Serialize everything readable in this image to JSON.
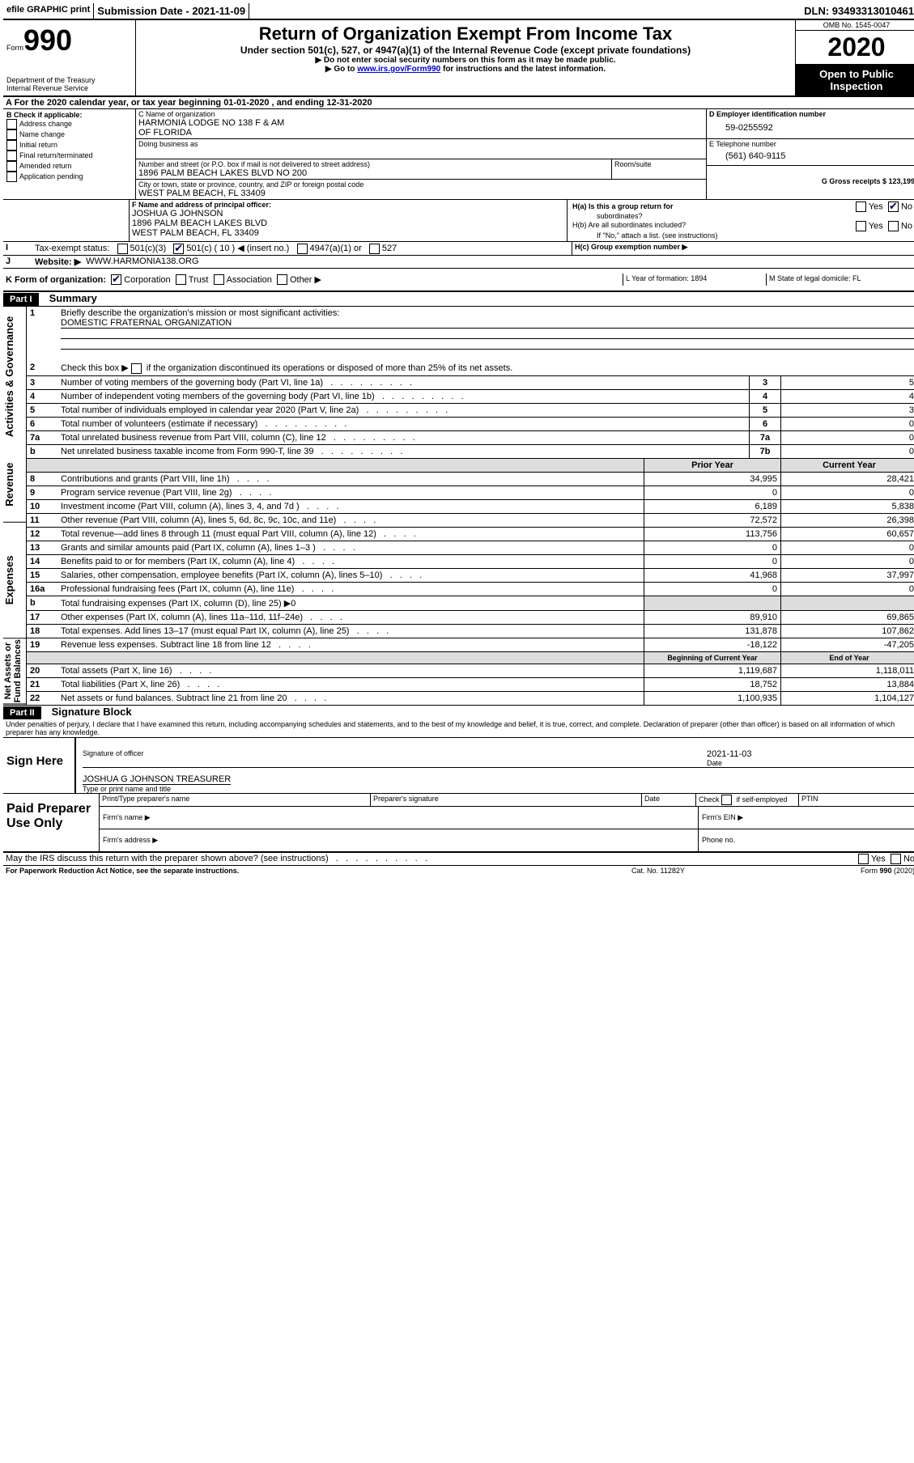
{
  "topbar": {
    "efile_label": "efile GRAPHIC print",
    "submission_label": "Submission Date - 2021-11-09",
    "dln_label": "DLN: 93493313010461"
  },
  "header": {
    "form_word": "Form",
    "form_number": "990",
    "dept1": "Department of the Treasury",
    "dept2": "Internal Revenue Service",
    "title": "Return of Organization Exempt From Income Tax",
    "subtitle": "Under section 501(c), 527, or 4947(a)(1) of the Internal Revenue Code (except private foundations)",
    "note1": "▶ Do not enter social security numbers on this form as it may be made public.",
    "note2_pre": "▶ Go to ",
    "note2_link": "www.irs.gov/Form990",
    "note2_post": " for instructions and the latest information.",
    "omb": "OMB No. 1545-0047",
    "year": "2020",
    "open1": "Open to Public",
    "open2": "Inspection"
  },
  "sectionA": {
    "line_a": "A For the 2020 calendar year, or tax year beginning 01-01-2020   , and ending 12-31-2020",
    "b_label": "B Check if applicable:",
    "b_opts": [
      "Address change",
      "Name change",
      "Initial return",
      "Final return/terminated",
      "Amended return",
      "Application pending"
    ],
    "c_name_label": "C Name of organization",
    "c_name1": "HARMONIA LODGE NO 138 F & AM",
    "c_name2": "OF FLORIDA",
    "dba_label": "Doing business as",
    "addr_label": "Number and street (or P.O. box if mail is not delivered to street address)",
    "room_label": "Room/suite",
    "addr": "1896 PALM BEACH LAKES BLVD NO 200",
    "city_label": "City or town, state or province, country, and ZIP or foreign postal code",
    "city": "WEST PALM BEACH, FL  33409",
    "d_label": "D Employer identification number",
    "d_val": "59-0255592",
    "e_label": "E Telephone number",
    "e_val": "(561) 640-9115",
    "g_label": "G Gross receipts $ 123,199",
    "f_label": "F  Name and address of principal officer:",
    "f_name": "JOSHUA G JOHNSON",
    "f_addr1": "1896 PALM BEACH LAKES BLVD",
    "f_addr2": "WEST PALM BEACH, FL  33409",
    "ha_label": "H(a)  Is this a group return for",
    "ha_label2": "subordinates?",
    "hb_label": "H(b)  Are all subordinates included?",
    "h_note": "If \"No,\" attach a list. (see instructions)",
    "hc_label": "H(c)  Group exemption number ▶",
    "yes": "Yes",
    "no": "No",
    "i_label": "Tax-exempt status:",
    "i_501c3": "501(c)(3)",
    "i_501c": "501(c) ( 10 ) ◀ (insert no.)",
    "i_4947": "4947(a)(1) or",
    "i_527": "527",
    "j_label": "Website: ▶",
    "j_val": "WWW.HARMONIA138.ORG",
    "k_label": "K Form of organization:",
    "k_opts": [
      "Corporation",
      "Trust",
      "Association",
      "Other ▶"
    ],
    "l_label": "L Year of formation: 1894",
    "m_label": "M State of legal domicile: FL"
  },
  "part1": {
    "header": "Part I",
    "title": "Summary",
    "side_gov": "Activities & Governance",
    "side_rev": "Revenue",
    "side_exp": "Expenses",
    "side_net": "Net Assets or Fund Balances",
    "q1": "Briefly describe the organization's mission or most significant activities:",
    "q1_val": "DOMESTIC FRATERNAL ORGANIZATION",
    "q2": "Check this box ▶       if the organization discontinued its operations or disposed of more than 25% of its net assets.",
    "rows_gov": [
      {
        "n": "3",
        "t": "Number of voting members of the governing body (Part VI, line 1a)",
        "l": "3",
        "v": "5"
      },
      {
        "n": "4",
        "t": "Number of independent voting members of the governing body (Part VI, line 1b)",
        "l": "4",
        "v": "4"
      },
      {
        "n": "5",
        "t": "Total number of individuals employed in calendar year 2020 (Part V, line 2a)",
        "l": "5",
        "v": "3"
      },
      {
        "n": "6",
        "t": "Total number of volunteers (estimate if necessary)",
        "l": "6",
        "v": "0"
      },
      {
        "n": "7a",
        "t": "Total unrelated business revenue from Part VIII, column (C), line 12",
        "l": "7a",
        "v": "0"
      },
      {
        "n": "b",
        "t": "Net unrelated business taxable income from Form 990-T, line 39",
        "l": "7b",
        "v": "0"
      }
    ],
    "col_prior": "Prior Year",
    "col_current": "Current Year",
    "col_beg": "Beginning of Current Year",
    "col_end": "End of Year",
    "rows_rev": [
      {
        "n": "8",
        "t": "Contributions and grants (Part VIII, line 1h)",
        "p": "34,995",
        "c": "28,421"
      },
      {
        "n": "9",
        "t": "Program service revenue (Part VIII, line 2g)",
        "p": "0",
        "c": "0"
      },
      {
        "n": "10",
        "t": "Investment income (Part VIII, column (A), lines 3, 4, and 7d )",
        "p": "6,189",
        "c": "5,838"
      },
      {
        "n": "11",
        "t": "Other revenue (Part VIII, column (A), lines 5, 6d, 8c, 9c, 10c, and 11e)",
        "p": "72,572",
        "c": "26,398"
      },
      {
        "n": "12",
        "t": "Total revenue—add lines 8 through 11 (must equal Part VIII, column (A), line 12)",
        "p": "113,756",
        "c": "60,657"
      }
    ],
    "rows_exp": [
      {
        "n": "13",
        "t": "Grants and similar amounts paid (Part IX, column (A), lines 1–3 )",
        "p": "0",
        "c": "0"
      },
      {
        "n": "14",
        "t": "Benefits paid to or for members (Part IX, column (A), line 4)",
        "p": "0",
        "c": "0"
      },
      {
        "n": "15",
        "t": "Salaries, other compensation, employee benefits (Part IX, column (A), lines 5–10)",
        "p": "41,968",
        "c": "37,997"
      },
      {
        "n": "16a",
        "t": "Professional fundraising fees (Part IX, column (A), line 11e)",
        "p": "0",
        "c": "0"
      },
      {
        "n": "b",
        "t": "Total fundraising expenses (Part IX, column (D), line 25) ▶0",
        "p": "",
        "c": ""
      },
      {
        "n": "17",
        "t": "Other expenses (Part IX, column (A), lines 11a–11d, 11f–24e)",
        "p": "89,910",
        "c": "69,865"
      },
      {
        "n": "18",
        "t": "Total expenses. Add lines 13–17 (must equal Part IX, column (A), line 25)",
        "p": "131,878",
        "c": "107,862"
      },
      {
        "n": "19",
        "t": "Revenue less expenses. Subtract line 18 from line 12",
        "p": "-18,122",
        "c": "-47,205"
      }
    ],
    "rows_net": [
      {
        "n": "20",
        "t": "Total assets (Part X, line 16)",
        "p": "1,119,687",
        "c": "1,118,011"
      },
      {
        "n": "21",
        "t": "Total liabilities (Part X, line 26)",
        "p": "18,752",
        "c": "13,884"
      },
      {
        "n": "22",
        "t": "Net assets or fund balances. Subtract line 21 from line 20",
        "p": "1,100,935",
        "c": "1,104,127"
      }
    ]
  },
  "part2": {
    "header": "Part II",
    "title": "Signature Block",
    "decl": "Under penalties of perjury, I declare that I have examined this return, including accompanying schedules and statements, and to the best of my knowledge and belief, it is true, correct, and complete. Declaration of preparer (other than officer) is based on all information of which preparer has any knowledge.",
    "sign_here": "Sign Here",
    "sig_officer": "Signature of officer",
    "date_label": "Date",
    "date_val": "2021-11-03",
    "name_title": "JOSHUA G JOHNSON  TREASURER",
    "type_name": "Type or print name and title",
    "paid": "Paid Preparer Use Only",
    "prep_name": "Print/Type preparer's name",
    "prep_sig": "Preparer's signature",
    "check_self": "Check        if self-employed",
    "ptin": "PTIN",
    "firm_name": "Firm's name   ▶",
    "firm_ein": "Firm's EIN ▶",
    "firm_addr": "Firm's address ▶",
    "phone": "Phone no.",
    "discuss": "May the IRS discuss this return with the preparer shown above? (see instructions)",
    "paperwork": "For Paperwork Reduction Act Notice, see the separate instructions.",
    "catno": "Cat. No. 11282Y",
    "formno": "Form 990 (2020)"
  }
}
